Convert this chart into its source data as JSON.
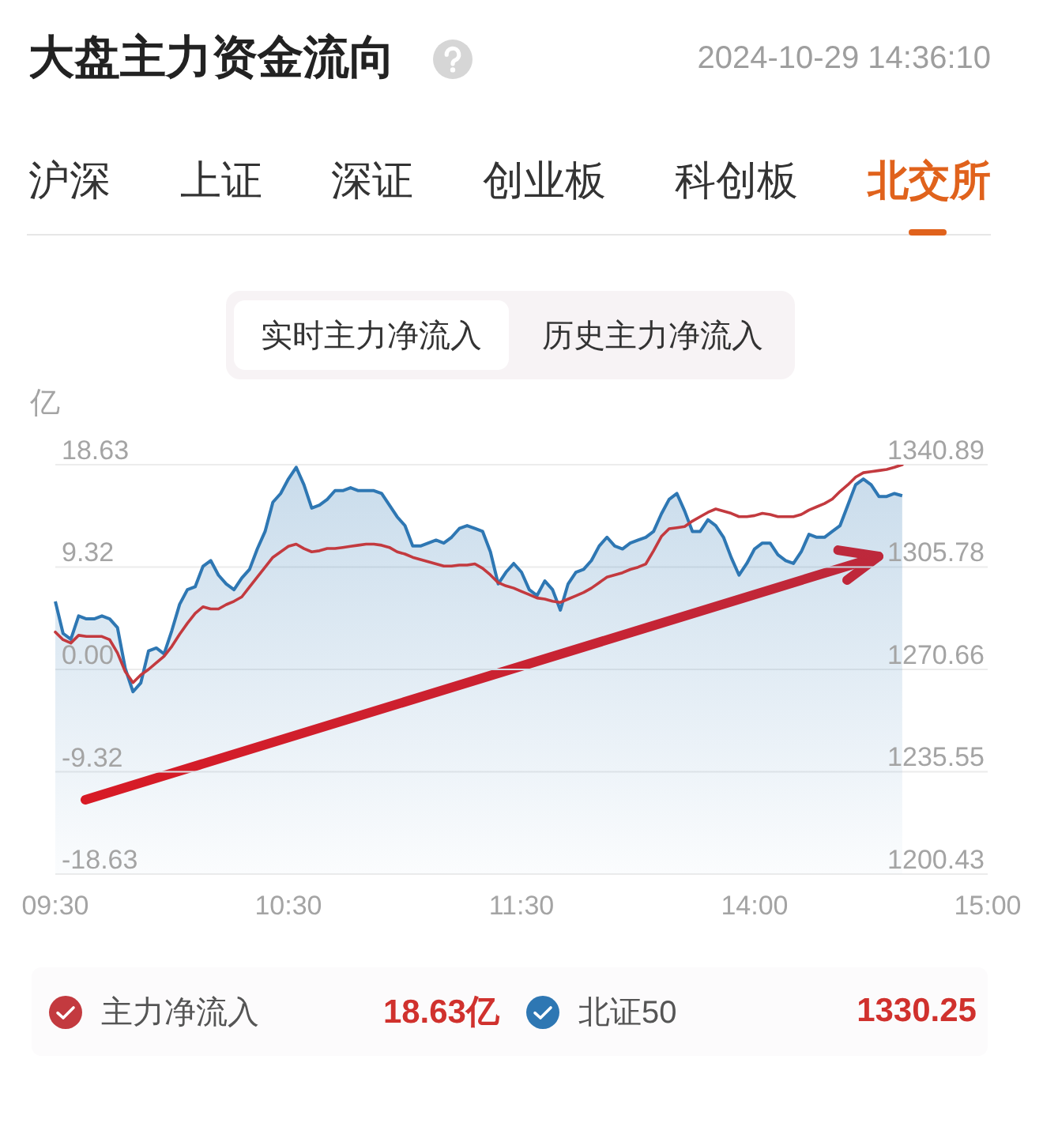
{
  "chart_data": {
    "type": "line",
    "title": "大盘主力资金流向",
    "subtitle": "2024-10-29 14:36:10",
    "ylabel": "亿",
    "annotations": [
      "沪深",
      "上证",
      "深证",
      "创业板",
      "科创板",
      "北交所",
      "实时主力净流入",
      "历史主力净流入",
      "18.63亿",
      "1330.25"
    ],
    "categories": [
      "09:30",
      null,
      null,
      null,
      null,
      null,
      null,
      null,
      null,
      null,
      null,
      null,
      null,
      null,
      null,
      null,
      null,
      null,
      null,
      null,
      null,
      null,
      null,
      null,
      null,
      null,
      null,
      null,
      null,
      null,
      "10:30",
      null,
      null,
      null,
      null,
      null,
      null,
      null,
      null,
      null,
      null,
      null,
      null,
      null,
      null,
      null,
      null,
      null,
      null,
      null,
      null,
      null,
      null,
      null,
      null,
      null,
      null,
      null,
      null,
      null,
      "11:30",
      null,
      null,
      null,
      null,
      null,
      null,
      null,
      null,
      null,
      null,
      null,
      null,
      null,
      null,
      null,
      null,
      null,
      null,
      null,
      null,
      null,
      null,
      null,
      null,
      null,
      null,
      null,
      null,
      null,
      "14:00",
      null,
      null,
      null,
      null,
      null,
      null,
      null,
      null,
      null,
      null,
      null,
      null,
      null,
      null,
      null,
      null,
      null,
      null,
      null,
      null,
      null,
      null,
      null,
      null,
      null,
      null,
      null,
      null,
      null,
      "15:00"
    ],
    "ylim": [
      -18.63,
      18.63
    ],
    "yticks": [
      -18.63,
      -9.32,
      {
        "value": 0,
        "label": "0.00"
      },
      9.32,
      18.63
    ],
    "y2lim": [
      1200.43,
      1340.89
    ],
    "y2ticks": [
      1200.43,
      1235.55,
      1270.66,
      1305.78,
      1340.89
    ],
    "grid": "y",
    "legend": "bottom",
    "series": [
      {
        "name": "主力净流入",
        "color": "#c33a3f",
        "values": [
          3.4,
          2.7,
          2.4,
          3.1,
          3.0,
          3.0,
          3.0,
          2.7,
          1.5,
          -0.2,
          -1.2,
          -0.5,
          0.0,
          0.6,
          1.2,
          2.1,
          3.2,
          4.2,
          5.1,
          5.7,
          5.5,
          5.5,
          5.9,
          6.2,
          6.6,
          7.5,
          8.4,
          9.3,
          10.2,
          10.7,
          11.2,
          11.4,
          11.0,
          10.7,
          10.8,
          11.0,
          11.0,
          11.1,
          11.2,
          11.3,
          11.4,
          11.4,
          11.3,
          11.1,
          10.7,
          10.5,
          10.2,
          10.0,
          9.8,
          9.6,
          9.4,
          9.4,
          9.5,
          9.5,
          9.6,
          9.2,
          8.6,
          7.9,
          7.6,
          7.4,
          7.1,
          6.8,
          6.5,
          6.4,
          6.2,
          6.1,
          6.4,
          6.7,
          7.0,
          7.4,
          7.9,
          8.4,
          8.6,
          8.8,
          9.1,
          9.3,
          9.6,
          10.8,
          12.1,
          12.8,
          12.9,
          13.0,
          13.5,
          13.9,
          14.3,
          14.6,
          14.4,
          14.2,
          13.9,
          13.9,
          14.0,
          14.2,
          14.1,
          13.9,
          13.9,
          13.9,
          14.1,
          14.5,
          14.8,
          15.1,
          15.5,
          16.2,
          16.8,
          17.5,
          17.9,
          18.0,
          18.1,
          18.2,
          18.4,
          18.63,
          null,
          null,
          null,
          null,
          null,
          null,
          null,
          null,
          null,
          null,
          null
        ]
      },
      {
        "name": "北证50",
        "type": "area",
        "axis": "y2",
        "color": "#2e77b3",
        "values": [
          1294,
          1283,
          1281,
          1289,
          1288,
          1288,
          1289,
          1288,
          1285,
          1271,
          1263,
          1266,
          1277,
          1278,
          1276,
          1284,
          1293,
          1298,
          1299,
          1306,
          1308,
          1303,
          1300,
          1298,
          1302,
          1305,
          1312,
          1318,
          1328,
          1331,
          1336,
          1340,
          1334,
          1326,
          1327,
          1329,
          1332,
          1332,
          1333,
          1332,
          1332,
          1332,
          1331,
          1327,
          1323,
          1320,
          1313,
          1313,
          1314,
          1315,
          1314,
          1316,
          1319,
          1320,
          1319,
          1318,
          1311,
          1300,
          1304,
          1307,
          1304,
          1298,
          1296,
          1301,
          1298,
          1291,
          1300,
          1304,
          1305,
          1308,
          1313,
          1316,
          1313,
          1312,
          1314,
          1315,
          1316,
          1318,
          1324,
          1329,
          1331,
          1325,
          1318,
          1318,
          1322,
          1320,
          1316,
          1309,
          1303,
          1307,
          1312,
          1314,
          1314,
          1310,
          1308,
          1307,
          1311,
          1317,
          1316,
          1316,
          1318,
          1320,
          1327,
          1334,
          1336,
          1334,
          1330,
          1330,
          1331,
          1330.25,
          null,
          null,
          null,
          null,
          null,
          null,
          null,
          null,
          null,
          null,
          null
        ]
      }
    ]
  }
}
